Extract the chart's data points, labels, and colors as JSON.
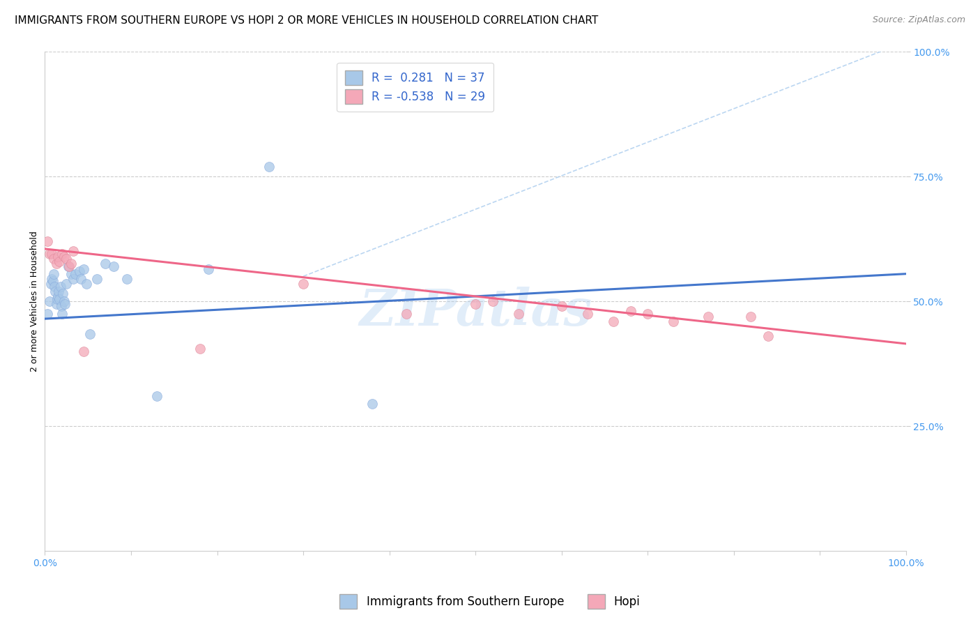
{
  "title": "IMMIGRANTS FROM SOUTHERN EUROPE VS HOPI 2 OR MORE VEHICLES IN HOUSEHOLD CORRELATION CHART",
  "source": "Source: ZipAtlas.com",
  "ylabel": "2 or more Vehicles in Household",
  "xlim": [
    0,
    1
  ],
  "ylim": [
    0,
    1
  ],
  "xticks": [
    0,
    0.1,
    0.2,
    0.3,
    0.4,
    0.5,
    0.6,
    0.7,
    0.8,
    0.9,
    1.0
  ],
  "xticklabels": [
    "0.0%",
    "",
    "",
    "",
    "",
    "",
    "",
    "",
    "",
    "",
    "100.0%"
  ],
  "ytick_positions": [
    0.25,
    0.5,
    0.75,
    1.0
  ],
  "ytick_labels": [
    "25.0%",
    "50.0%",
    "75.0%",
    "100.0%"
  ],
  "blue_R": 0.281,
  "blue_N": 37,
  "pink_R": -0.538,
  "pink_N": 29,
  "blue_color": "#A8C8E8",
  "pink_color": "#F4A8B8",
  "blue_line_color": "#4477CC",
  "pink_line_color": "#EE6688",
  "dashed_line_color": "#AACCEE",
  "legend_label_blue": "Immigrants from Southern Europe",
  "legend_label_pink": "Hopi",
  "blue_line_x0": 0.0,
  "blue_line_y0": 0.465,
  "blue_line_x1": 1.0,
  "blue_line_y1": 0.555,
  "pink_line_x0": 0.0,
  "pink_line_y0": 0.605,
  "pink_line_x1": 1.0,
  "pink_line_y1": 0.415,
  "blue_scatter_x": [
    0.003,
    0.005,
    0.007,
    0.008,
    0.009,
    0.01,
    0.011,
    0.012,
    0.013,
    0.014,
    0.015,
    0.016,
    0.017,
    0.018,
    0.019,
    0.02,
    0.021,
    0.022,
    0.023,
    0.025,
    0.027,
    0.03,
    0.033,
    0.035,
    0.04,
    0.042,
    0.045,
    0.048,
    0.052,
    0.06,
    0.07,
    0.08,
    0.095,
    0.13,
    0.19,
    0.26,
    0.38
  ],
  "blue_scatter_y": [
    0.475,
    0.5,
    0.535,
    0.545,
    0.54,
    0.555,
    0.53,
    0.52,
    0.495,
    0.505,
    0.51,
    0.52,
    0.505,
    0.53,
    0.49,
    0.475,
    0.515,
    0.5,
    0.495,
    0.535,
    0.57,
    0.555,
    0.545,
    0.555,
    0.56,
    0.545,
    0.565,
    0.535,
    0.435,
    0.545,
    0.575,
    0.57,
    0.545,
    0.31,
    0.565,
    0.77,
    0.295
  ],
  "pink_scatter_x": [
    0.003,
    0.005,
    0.008,
    0.01,
    0.013,
    0.015,
    0.017,
    0.02,
    0.022,
    0.025,
    0.028,
    0.03,
    0.033,
    0.045,
    0.18,
    0.3,
    0.42,
    0.5,
    0.52,
    0.55,
    0.6,
    0.63,
    0.66,
    0.68,
    0.7,
    0.73,
    0.77,
    0.82,
    0.84
  ],
  "pink_scatter_y": [
    0.62,
    0.595,
    0.595,
    0.585,
    0.575,
    0.59,
    0.58,
    0.595,
    0.59,
    0.585,
    0.57,
    0.575,
    0.6,
    0.4,
    0.405,
    0.535,
    0.475,
    0.495,
    0.5,
    0.475,
    0.49,
    0.475,
    0.46,
    0.48,
    0.475,
    0.46,
    0.47,
    0.47,
    0.43
  ],
  "title_fontsize": 11,
  "axis_label_fontsize": 9,
  "tick_fontsize": 10,
  "legend_fontsize": 12,
  "source_fontsize": 9,
  "background_color": "#FFFFFF",
  "grid_color": "#CCCCCC"
}
